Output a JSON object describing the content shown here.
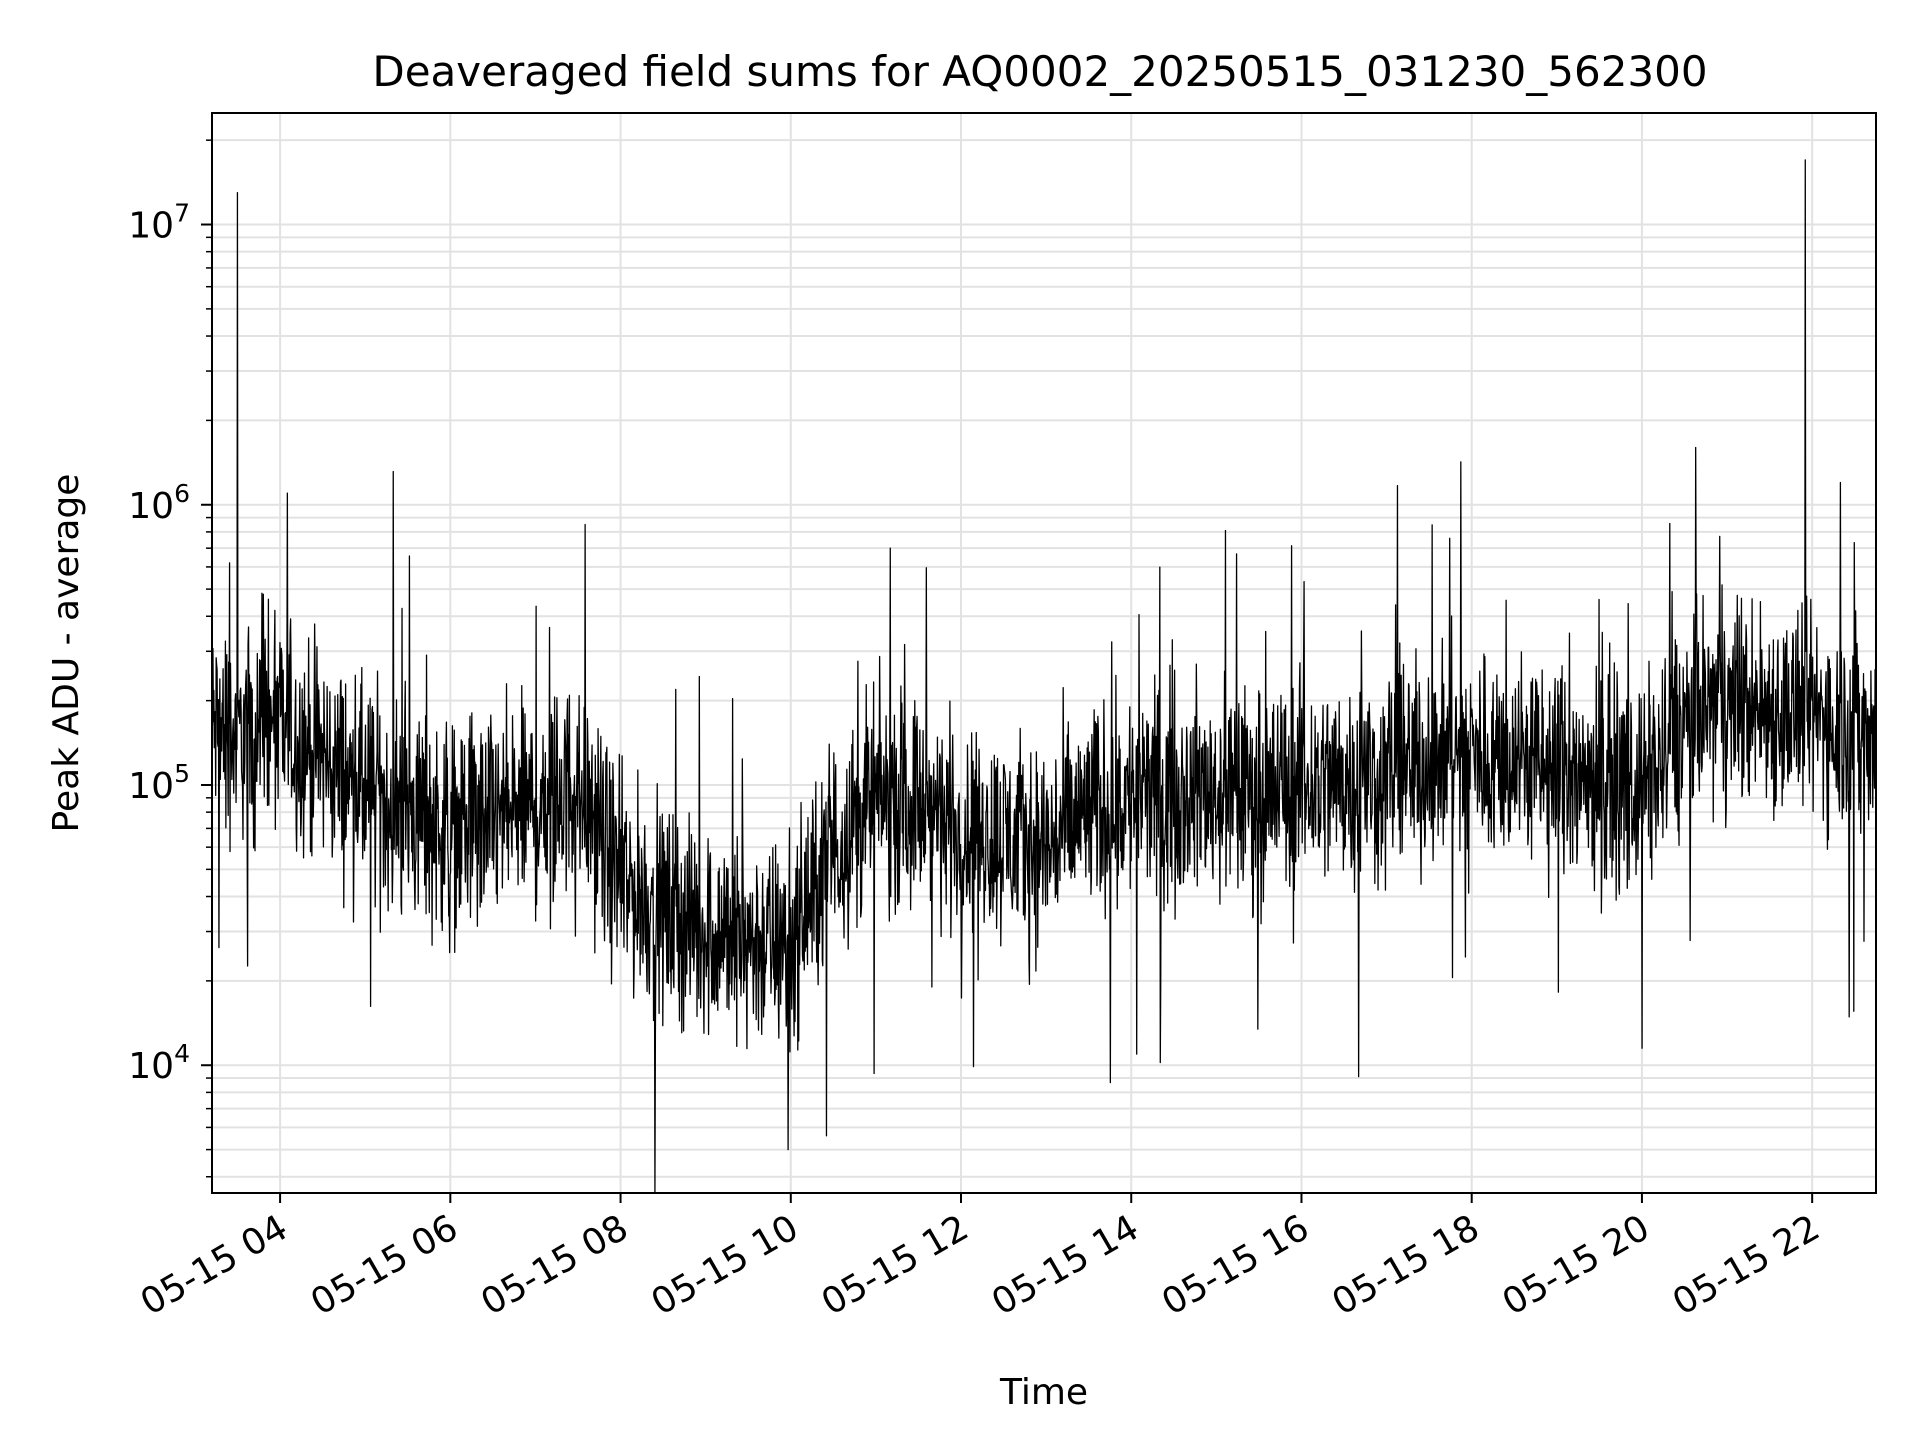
{
  "chart_data": {
    "type": "line",
    "title": "Deaveraged field sums for AQ0002_20250515_031230_562300",
    "xlabel": "Time",
    "ylabel": "Peak ADU - average",
    "yscale": "log",
    "ylim": [
      3500,
      25000000
    ],
    "xlim": [
      "2025-05-15 03:12",
      "2025-05-15 22:45"
    ],
    "grid": true,
    "x_ticks": [
      {
        "t": "2025-05-15 04:00",
        "label": "05-15 04"
      },
      {
        "t": "2025-05-15 06:00",
        "label": "05-15 06"
      },
      {
        "t": "2025-05-15 08:00",
        "label": "05-15 08"
      },
      {
        "t": "2025-05-15 10:00",
        "label": "05-15 10"
      },
      {
        "t": "2025-05-15 12:00",
        "label": "05-15 12"
      },
      {
        "t": "2025-05-15 14:00",
        "label": "05-15 14"
      },
      {
        "t": "2025-05-15 16:00",
        "label": "05-15 16"
      },
      {
        "t": "2025-05-15 18:00",
        "label": "05-15 18"
      },
      {
        "t": "2025-05-15 20:00",
        "label": "05-15 20"
      },
      {
        "t": "2025-05-15 22:00",
        "label": "05-15 22"
      }
    ],
    "y_ticks": [
      {
        "value": 10000,
        "base": "10",
        "exp": "4"
      },
      {
        "value": 100000,
        "base": "10",
        "exp": "5"
      },
      {
        "value": 1000000,
        "base": "10",
        "exp": "6"
      },
      {
        "value": 10000000,
        "base": "10",
        "exp": "7"
      }
    ],
    "series": [
      {
        "color": "#000000",
        "x": [
          "2025-05-15 03:12",
          "2025-05-15 03:30",
          "2025-05-15 04:00",
          "2025-05-15 04:30",
          "2025-05-15 05:00",
          "2025-05-15 05:30",
          "2025-05-15 06:00",
          "2025-05-15 06:30",
          "2025-05-15 07:00",
          "2025-05-15 07:30",
          "2025-05-15 08:00",
          "2025-05-15 08:30",
          "2025-05-15 09:00",
          "2025-05-15 09:30",
          "2025-05-15 10:00",
          "2025-05-15 10:30",
          "2025-05-15 11:00",
          "2025-05-15 11:30",
          "2025-05-15 12:00",
          "2025-05-15 12:30",
          "2025-05-15 13:00",
          "2025-05-15 13:30",
          "2025-05-15 14:00",
          "2025-05-15 14:30",
          "2025-05-15 15:00",
          "2025-05-15 15:30",
          "2025-05-15 16:00",
          "2025-05-15 16:30",
          "2025-05-15 17:00",
          "2025-05-15 17:30",
          "2025-05-15 18:00",
          "2025-05-15 18:30",
          "2025-05-15 19:00",
          "2025-05-15 19:30",
          "2025-05-15 20:00",
          "2025-05-15 20:15",
          "2025-05-15 20:30",
          "2025-05-15 21:00",
          "2025-05-15 21:30",
          "2025-05-15 22:00",
          "2025-05-15 22:45"
        ],
        "values": [
          160000,
          150000,
          160000,
          125000,
          95000,
          80000,
          70000,
          75000,
          85000,
          100000,
          45000,
          35000,
          30000,
          28000,
          26000,
          60000,
          90000,
          85000,
          70000,
          65000,
          60000,
          80000,
          90000,
          95000,
          95000,
          95000,
          100000,
          105000,
          110000,
          120000,
          130000,
          125000,
          110000,
          105000,
          100000,
          120000,
          170000,
          200000,
          185000,
          180000,
          150000
        ],
        "spikes": [
          {
            "t": "2025-05-15 03:30",
            "value": 13000000
          },
          {
            "t": "2025-05-15 04:05",
            "value": 1100000
          },
          {
            "t": "2025-05-15 07:35",
            "value": 850000
          },
          {
            "t": "2025-05-15 11:10",
            "value": 700000
          },
          {
            "t": "2025-05-15 20:38",
            "value": 1600000
          },
          {
            "t": "2025-05-15 21:55",
            "value": 17000000
          },
          {
            "t": "2025-05-15 22:20",
            "value": 1200000
          },
          {
            "t": "2025-05-15 09:58",
            "value": 5000
          },
          {
            "t": "2025-05-15 10:25",
            "value": 5600
          },
          {
            "t": "2025-05-15 20:00",
            "value": 11500
          }
        ],
        "noise_band_decades": 0.55
      }
    ]
  }
}
